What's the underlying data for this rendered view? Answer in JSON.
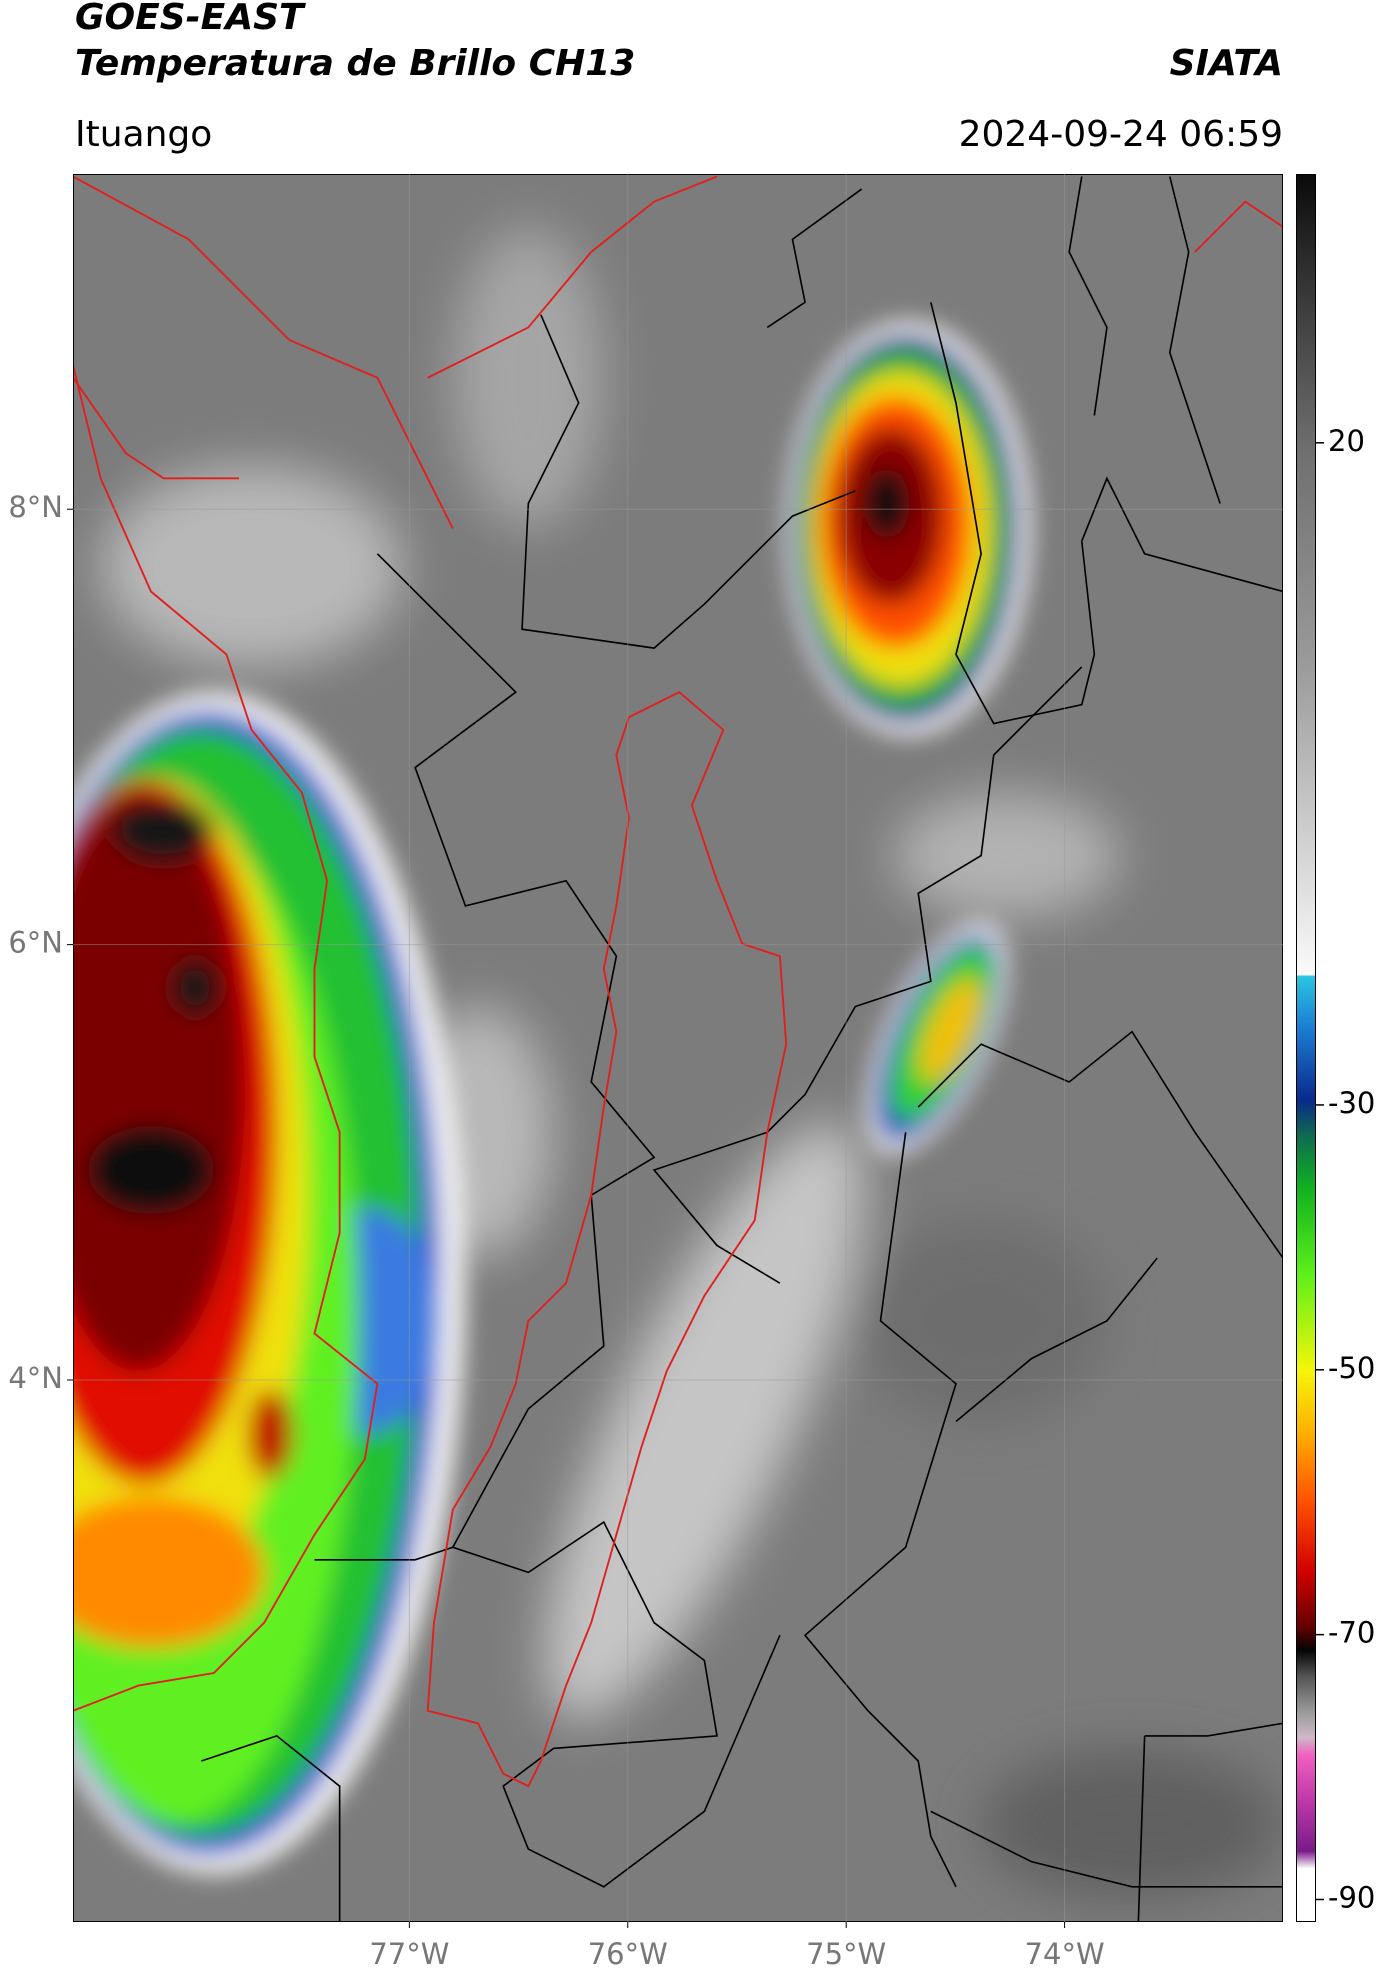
{
  "chart_data": {
    "type": "map",
    "title": "GOES-EAST",
    "subtitle": "Temperatura de Brillo CH13",
    "source": "SIATA",
    "region": "Ituango",
    "timestamp": "2024-09-24 06:59",
    "xlim": [
      -78.54,
      -73.0
    ],
    "ylim": [
      1.51,
      9.54
    ],
    "xticks": [
      {
        "value": -77,
        "label": "77°W"
      },
      {
        "value": -76,
        "label": "76°W"
      },
      {
        "value": -75,
        "label": "75°W"
      },
      {
        "value": -74,
        "label": "74°W"
      }
    ],
    "yticks": [
      {
        "value": 8,
        "label": "8°N"
      },
      {
        "value": 6,
        "label": "6°N"
      },
      {
        "value": 4,
        "label": "4°N"
      }
    ],
    "colorbar": {
      "lim": [
        -91.7,
        40.3
      ],
      "ticks": [
        20,
        -30,
        -50,
        -70,
        -90
      ]
    },
    "grid": true
  }
}
